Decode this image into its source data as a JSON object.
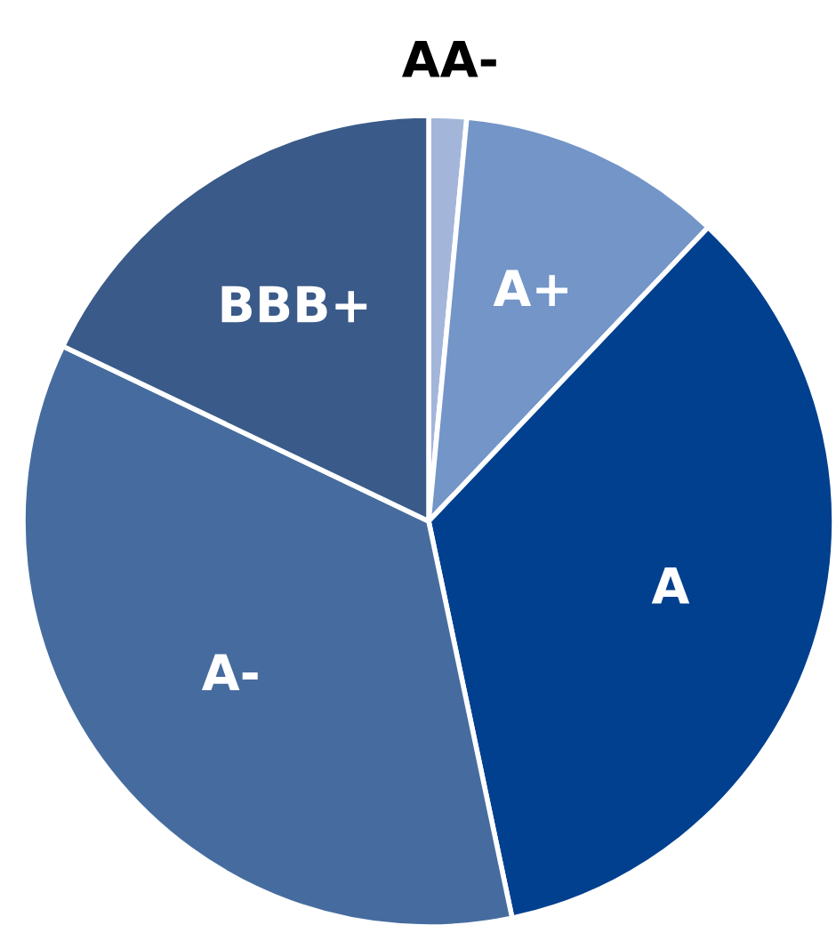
{
  "chart_data": {
    "type": "pie",
    "categories": [
      "AA-",
      "A+",
      "A",
      "A-",
      "BBB+"
    ],
    "values": [
      1.5,
      10.6,
      34.6,
      35.4,
      17.9
    ],
    "colors": [
      "#a3b6da",
      "#7395c8",
      "#00408f",
      "#466c9f",
      "#3a5a89"
    ]
  }
}
